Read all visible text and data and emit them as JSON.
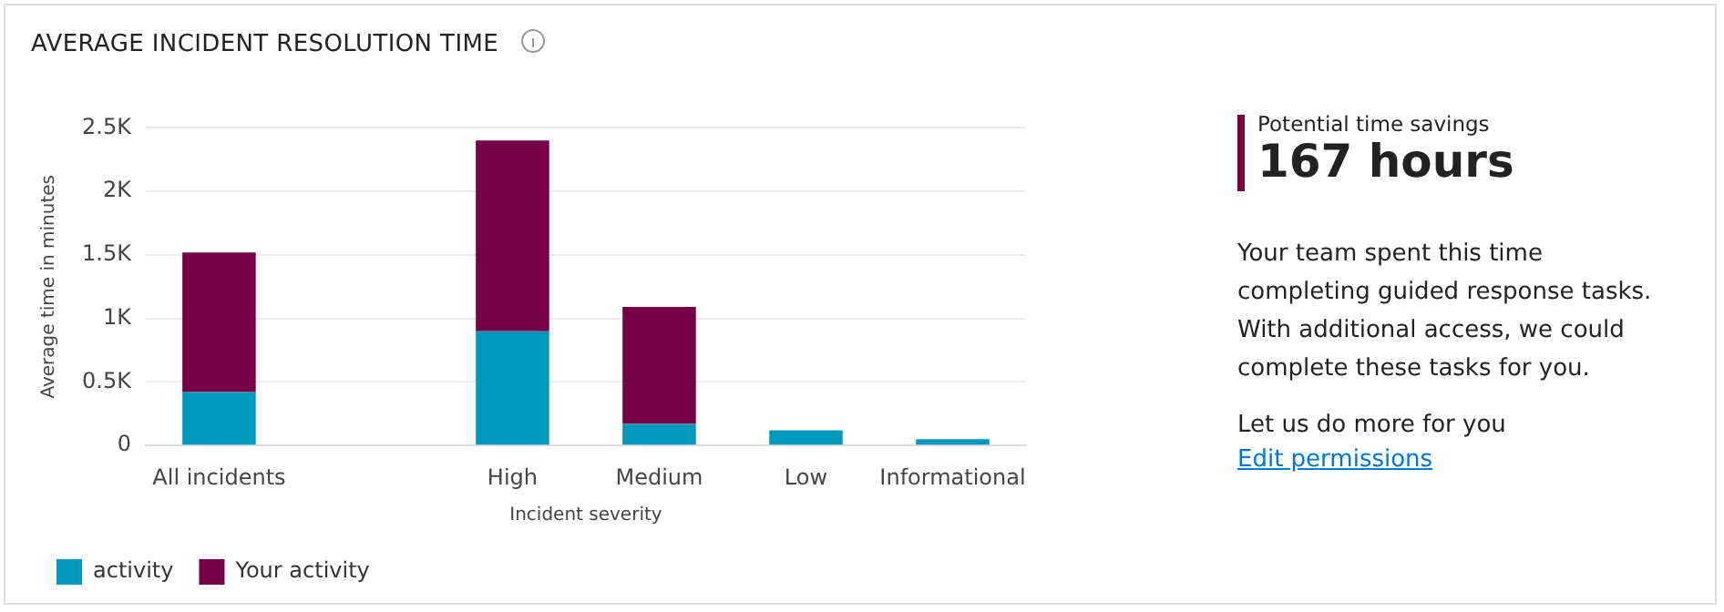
{
  "chart_data": {
    "type": "bar",
    "title": "AVERAGE INCIDENT RESOLUTION TIME",
    "xlabel": "Incident severity",
    "ylabel": "Average time in minutes",
    "categories": [
      "All incidents",
      null,
      "High",
      "Medium",
      "Low",
      "Informational"
    ],
    "series": [
      {
        "name": "activity",
        "color": "#0099bc",
        "values": [
          420,
          null,
          900,
          170,
          120,
          50
        ]
      },
      {
        "name": "Your activity",
        "color": "#750046",
        "values": [
          1100,
          null,
          1500,
          920,
          0,
          0
        ]
      }
    ],
    "stacked": true,
    "ylim": [
      0,
      2500
    ],
    "yticks": [
      0,
      {
        "value": 500,
        "label": "0.5K"
      },
      {
        "value": 1000,
        "label": "1K"
      },
      {
        "value": 1500,
        "label": "1.5K"
      },
      {
        "value": 2000,
        "label": "2K"
      },
      {
        "value": 2500,
        "label": "2.5K"
      }
    ],
    "grid": "y",
    "legend": "bottom",
    "annotations": [
      "Potential time savings",
      "167 hours",
      "Your team spent this time completing guided response tasks. With additional access, we could complete these tasks for you.",
      "Let us do more for you",
      "Edit permissions"
    ]
  }
}
